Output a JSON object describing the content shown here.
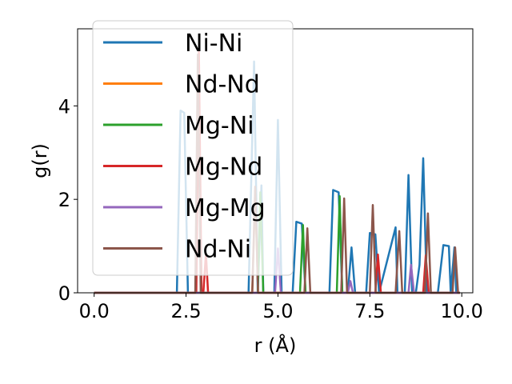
{
  "chart_data": {
    "type": "line",
    "xlabel": "r (Å)",
    "ylabel": "g(r)",
    "xlim": [
      -0.45,
      10.3
    ],
    "ylim": [
      0,
      5.65
    ],
    "xticks": [
      0.0,
      2.5,
      5.0,
      7.5,
      10.0
    ],
    "xtick_labels": [
      "0.0",
      "2.5",
      "5.0",
      "7.5",
      "10.0"
    ],
    "yticks": [
      0,
      2,
      4
    ],
    "ytick_labels": [
      "0",
      "2",
      "4"
    ],
    "grid": false,
    "legend_placement": "upper-left",
    "series": [
      {
        "name": "Ni-Ni",
        "color": "#1f77b4",
        "x": [
          0,
          2.25,
          2.35,
          2.45,
          2.55,
          2.65,
          4.2,
          4.35,
          4.45,
          4.55,
          4.6,
          4.9,
          5.0,
          5.1,
          5.4,
          5.5,
          5.65,
          5.75,
          6.4,
          6.5,
          6.65,
          6.75,
          6.9,
          7.0,
          7.1,
          7.4,
          7.5,
          7.65,
          7.75,
          8.2,
          8.25,
          8.35,
          8.45,
          8.55,
          8.65,
          8.75,
          8.85,
          8.95,
          9.05,
          9.15,
          9.35,
          9.5,
          9.65,
          9.7,
          9.8,
          9.85,
          9.95
        ],
        "y": [
          0,
          0,
          3.9,
          3.85,
          0,
          0,
          0,
          4.95,
          0,
          2.3,
          0,
          0,
          3.7,
          0,
          0,
          1.52,
          1.48,
          0,
          0,
          2.2,
          2.15,
          0,
          0,
          0.97,
          0,
          0,
          1.28,
          1.25,
          0,
          1.4,
          0,
          0,
          0,
          2.52,
          0,
          0,
          0.6,
          2.88,
          0,
          0,
          0,
          1.02,
          1.0,
          0,
          0.97,
          0,
          0
        ]
      },
      {
        "name": "Nd-Nd",
        "color": "#ff7f0e",
        "x": [
          0,
          4.3,
          4.38,
          4.46,
          9.95
        ],
        "y": [
          0,
          0,
          2.2,
          0,
          0
        ]
      },
      {
        "name": "Mg-Ni",
        "color": "#2ca02c",
        "x": [
          0,
          4.45,
          4.52,
          4.6,
          5.6,
          5.68,
          5.75,
          6.6,
          6.68,
          6.75,
          9.95
        ],
        "y": [
          0,
          0,
          2.15,
          0,
          0,
          1.45,
          0,
          0,
          2.07,
          0,
          0
        ]
      },
      {
        "name": "Mg-Nd",
        "color": "#d62728",
        "x": [
          0,
          2.78,
          2.85,
          2.92,
          2.97,
          3.04,
          3.1,
          7.65,
          7.72,
          7.8,
          8.95,
          9.02,
          9.1,
          9.95
        ],
        "y": [
          0,
          0,
          5.2,
          0,
          0,
          0.85,
          0,
          0,
          0.82,
          0,
          0,
          0.8,
          0,
          0
        ]
      },
      {
        "name": "Mg-Mg",
        "color": "#9467bd",
        "x": [
          0,
          4.92,
          5.0,
          5.08,
          6.9,
          6.97,
          7.04,
          8.55,
          8.62,
          8.7,
          9.95
        ],
        "y": [
          0,
          0,
          0.95,
          0,
          0,
          0.25,
          0,
          0,
          0.6,
          0,
          0
        ]
      },
      {
        "name": "Nd-Ni",
        "color": "#8c564b",
        "x": [
          0,
          2.75,
          2.82,
          2.9,
          4.3,
          4.38,
          4.46,
          5.72,
          5.8,
          5.88,
          6.72,
          6.8,
          6.88,
          7.5,
          7.58,
          7.66,
          8.2,
          8.3,
          8.38,
          9.0,
          9.08,
          9.16,
          9.75,
          9.82,
          9.9,
          9.95
        ],
        "y": [
          0,
          0,
          5.1,
          0,
          0,
          2.27,
          0,
          0,
          1.38,
          0,
          0,
          2.02,
          0,
          0,
          1.88,
          0,
          0,
          1.32,
          0,
          0,
          1.7,
          0,
          0,
          0.97,
          0,
          0
        ]
      }
    ]
  }
}
